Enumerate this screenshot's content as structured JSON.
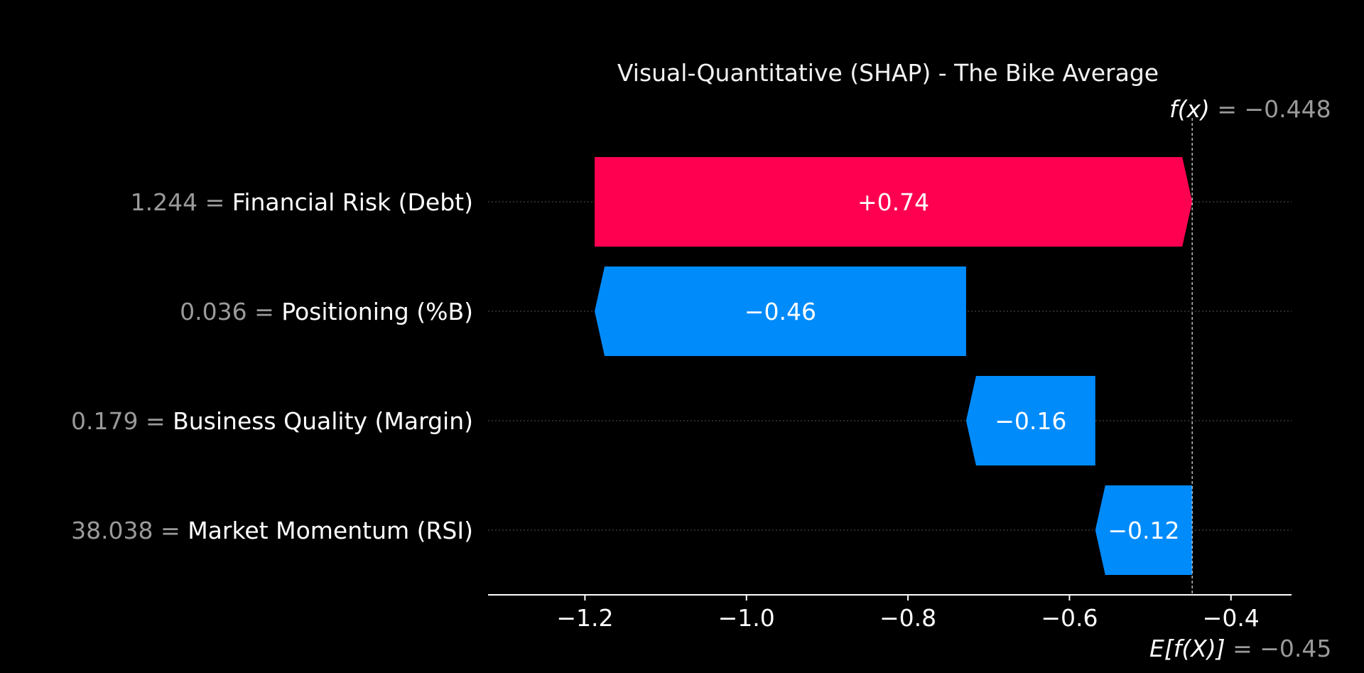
{
  "chart_data": {
    "type": "bar",
    "subtype": "shap-waterfall",
    "title": "Visual-Quantitative (SHAP) - The Bike Average",
    "base_value": -0.448,
    "base_value_label_prefix": "f(x)",
    "base_value_label_value": "−0.448",
    "expected_value": -0.45,
    "expected_value_label_prefix": "E[f(X)]",
    "expected_value_label_value": "−0.45",
    "x_ticks": [
      -1.2,
      -1.0,
      -0.8,
      -0.6,
      -0.4
    ],
    "x_tick_labels": [
      "−1.2",
      "−1.0",
      "−0.8",
      "−0.6",
      "−0.4"
    ],
    "xlim": [
      -1.32,
      -0.325
    ],
    "features": [
      {
        "name": "Financial Risk (Debt)",
        "feature_value": "1.244",
        "start": -0.448,
        "shap": 0.74,
        "label": "+0.74",
        "color": "#ff0051"
      },
      {
        "name": "Positioning (%B)",
        "feature_value": "0.036",
        "start": -0.728,
        "shap": -0.46,
        "label": "−0.46",
        "color": "#008bfb"
      },
      {
        "name": "Business Quality (Margin)",
        "feature_value": "0.179",
        "start": -0.568,
        "shap": -0.16,
        "label": "−0.16",
        "color": "#008bfb"
      },
      {
        "name": "Market Momentum (RSI)",
        "feature_value": "38.038",
        "start": -0.448,
        "shap": -0.12,
        "label": "−0.12",
        "color": "#008bfb"
      }
    ],
    "grid": false,
    "legend": "none"
  }
}
